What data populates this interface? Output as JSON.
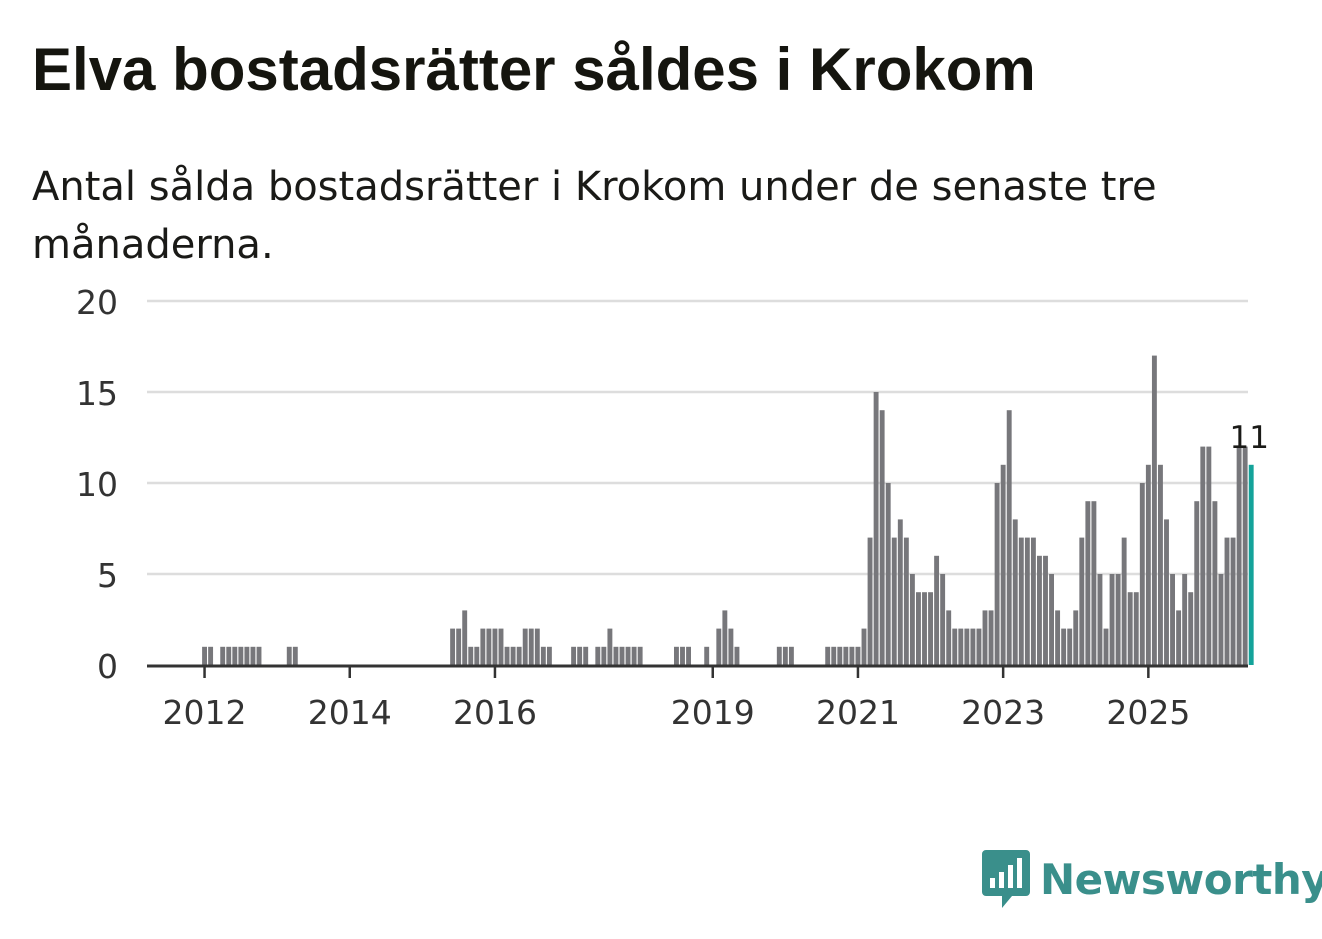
{
  "header": {
    "title": "Elva bostadsrätter såldes i Krokom",
    "subtitle": "Antal sålda bostadsrätter i Krokom under de senaste tre månaderna."
  },
  "brand": {
    "name": "Newsworthy",
    "color": "#3a8f8b"
  },
  "colors": {
    "bar": "#77777b",
    "highlight": "#14a39a",
    "grid": "#dddddd",
    "axis": "#333333"
  },
  "chart_data": {
    "type": "bar",
    "title": "Antal sålda bostadsrätter i Krokom under de senaste tre månaderna.",
    "xlabel": "",
    "ylabel": "",
    "ylim": [
      0,
      20
    ],
    "yticks": [
      0,
      5,
      10,
      15,
      20
    ],
    "grid": true,
    "start_month": "2011-11",
    "x_ticks": [
      {
        "label": "2012",
        "month": "2012-01"
      },
      {
        "label": "2014",
        "month": "2014-01"
      },
      {
        "label": "2016",
        "month": "2016-01"
      },
      {
        "label": "2019",
        "month": "2019-01"
      },
      {
        "label": "2021",
        "month": "2021-01"
      },
      {
        "label": "2023",
        "month": "2023-01"
      },
      {
        "label": "2025",
        "month": "2025-01"
      }
    ],
    "values": [
      0,
      0,
      1,
      1,
      0,
      1,
      1,
      1,
      1,
      1,
      1,
      1,
      0,
      0,
      0,
      0,
      1,
      1,
      0,
      0,
      0,
      0,
      0,
      0,
      0,
      0,
      0,
      0,
      0,
      0,
      0,
      0,
      0,
      0,
      0,
      0,
      0,
      0,
      0,
      0,
      0,
      0,
      0,
      2,
      2,
      3,
      1,
      1,
      2,
      2,
      2,
      2,
      1,
      1,
      1,
      2,
      2,
      2,
      1,
      1,
      0,
      0,
      0,
      1,
      1,
      1,
      0,
      1,
      1,
      2,
      1,
      1,
      1,
      1,
      1,
      0,
      0,
      0,
      0,
      0,
      1,
      1,
      1,
      0,
      0,
      1,
      0,
      2,
      3,
      2,
      1,
      0,
      0,
      0,
      0,
      0,
      0,
      1,
      1,
      1,
      0,
      0,
      0,
      0,
      0,
      1,
      1,
      1,
      1,
      1,
      1,
      2,
      7,
      15,
      14,
      10,
      7,
      8,
      7,
      5,
      4,
      4,
      4,
      6,
      5,
      3,
      2,
      2,
      2,
      2,
      2,
      3,
      3,
      10,
      11,
      14,
      8,
      7,
      7,
      7,
      6,
      6,
      5,
      3,
      2,
      2,
      3,
      7,
      9,
      9,
      5,
      2,
      5,
      5,
      7,
      4,
      4,
      10,
      11,
      17,
      11,
      8,
      5,
      3,
      5,
      4,
      9,
      12,
      12,
      9,
      5,
      7,
      7,
      12,
      12,
      11
    ],
    "highlight_last": true,
    "last_label": "11"
  }
}
